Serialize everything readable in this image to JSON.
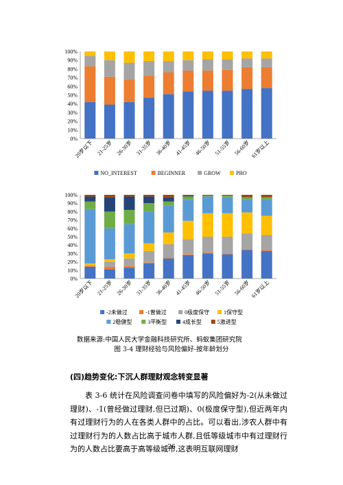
{
  "chart_data": [
    {
      "type": "bar",
      "stacked": true,
      "categories": [
        "20岁以下",
        "21-25岁",
        "26-30岁",
        "31-35岁",
        "36-40岁",
        "41-45岁",
        "46-50岁",
        "51-55岁",
        "56-60岁",
        "61岁以上"
      ],
      "yticks": [
        "0%",
        "10%",
        "20%",
        "30%",
        "40%",
        "50%",
        "60%",
        "70%",
        "80%",
        "90%",
        "100%"
      ],
      "ylim": [
        0,
        100
      ],
      "legend_position": "bottom",
      "series": [
        {
          "name": "NO_INTEREST",
          "color": "#4472C4",
          "values": [
            42,
            39,
            42,
            47,
            51,
            54,
            55,
            55,
            57,
            58
          ]
        },
        {
          "name": "BEGINNER",
          "color": "#ED7D31",
          "values": [
            41,
            32,
            26,
            25,
            25,
            24,
            23,
            24,
            25,
            24
          ]
        },
        {
          "name": "GROW",
          "color": "#A5A5A5",
          "values": [
            12,
            19,
            19,
            17,
            13,
            12,
            13,
            12,
            10,
            10
          ]
        },
        {
          "name": "PRO",
          "color": "#FFC000",
          "values": [
            5,
            10,
            13,
            11,
            11,
            10,
            9,
            9,
            8,
            8
          ]
        }
      ]
    },
    {
      "type": "bar",
      "stacked": true,
      "categories": [
        "20岁以下",
        "21-25岁",
        "26-30岁",
        "31-35岁",
        "36-40岁",
        "41-45岁",
        "46-50岁",
        "51-55岁",
        "56-60岁",
        "61岁以上"
      ],
      "yticks": [
        "0%",
        "10%",
        "20%",
        "30%",
        "40%",
        "50%",
        "60%",
        "70%",
        "80%",
        "90%",
        "100%"
      ],
      "ylim": [
        0,
        100
      ],
      "legend_position": "bottom",
      "series": [
        {
          "name": "-2未做过",
          "color": "#4472C4",
          "values": [
            14,
            11,
            13,
            18,
            24,
            28,
            30,
            29,
            34,
            33
          ]
        },
        {
          "name": "-1曾做过",
          "color": "#ED7D31",
          "values": [
            1,
            3,
            2,
            1,
            1,
            1,
            1,
            1,
            1,
            1
          ]
        },
        {
          "name": "0极度保守",
          "color": "#A5A5A5",
          "values": [
            1,
            6,
            9,
            14,
            16,
            18,
            19,
            20,
            19,
            18
          ]
        },
        {
          "name": "1保守型",
          "color": "#FFC000",
          "values": [
            2,
            3,
            6,
            9,
            14,
            22,
            28,
            28,
            25,
            23
          ]
        },
        {
          "name": "2稳健型",
          "color": "#5B9BD5",
          "values": [
            65,
            37,
            35,
            38,
            32,
            25,
            20,
            19,
            16,
            20
          ]
        },
        {
          "name": "3平衡型",
          "color": "#70AD47",
          "values": [
            9,
            20,
            17,
            10,
            5,
            4,
            1,
            2,
            2,
            2
          ]
        },
        {
          "name": "4成长型",
          "color": "#264478",
          "values": [
            6,
            17,
            16,
            8,
            5,
            1,
            0,
            0,
            0,
            0
          ]
        },
        {
          "name": "5激进型",
          "color": "#9E480E",
          "values": [
            2,
            3,
            2,
            2,
            3,
            1,
            1,
            1,
            3,
            3
          ]
        }
      ]
    }
  ],
  "source": "数据来源:中国人民大学金融科技研究所、蚂蚁集团研究院",
  "caption": "图 3-4    理财经验与风险偏好-按年龄划分",
  "section_title": "(四)趋势变化:下沉人群理财观念转变显著",
  "paragraph": "表 3-6 统计在风险调查问卷中填写的风险偏好为-2(从未做过理财)、-1(曾经做过理财,但已过期)、0(极度保守型),但近两年内有过理财行为的人在各类人群中的占比。可以看出,涉农人群中有过理财行为的人数占比高于城市人群,且低等级城市中有过理财行为的人数占比要高于高等级城市,这表明互联网理财",
  "page_number": "26"
}
